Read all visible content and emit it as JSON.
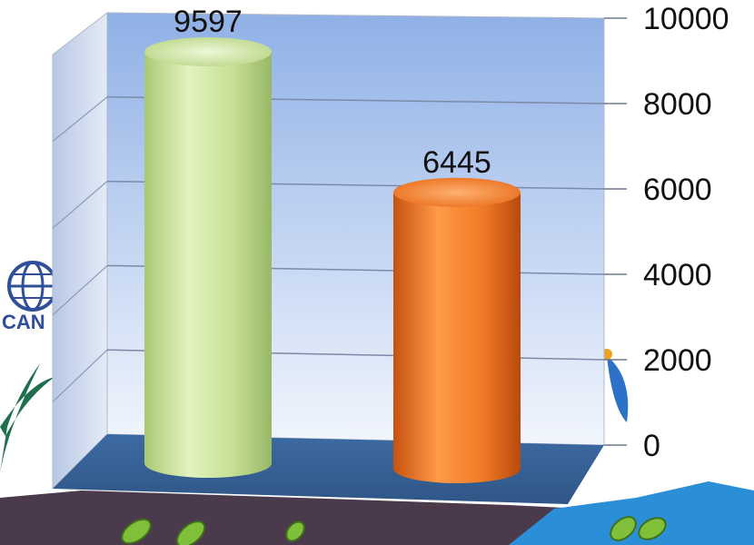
{
  "chart_data": {
    "type": "bar",
    "style": "3d-cylinder",
    "categories": [
      "",
      ""
    ],
    "series": [
      {
        "values": [
          9597,
          6445
        ]
      }
    ],
    "data_labels": [
      "9597",
      "6445"
    ],
    "bar_colors": [
      "#c9e49a",
      "#f07a26"
    ],
    "y_ticks": [
      "0",
      "2000",
      "4000",
      "6000",
      "8000",
      "10000"
    ],
    "ylim": [
      0,
      10000
    ],
    "grid": true,
    "legend": "none",
    "title": "",
    "xlabel": "",
    "ylabel": ""
  },
  "background": {
    "logo_text": "CAN",
    "wall_color": "#a9bfe6",
    "floor_color": "#3f6aa1",
    "ground_color": "#4a3a4c",
    "accent_water": "#2b8fd8",
    "leaf_color": "#7fbf3a"
  }
}
